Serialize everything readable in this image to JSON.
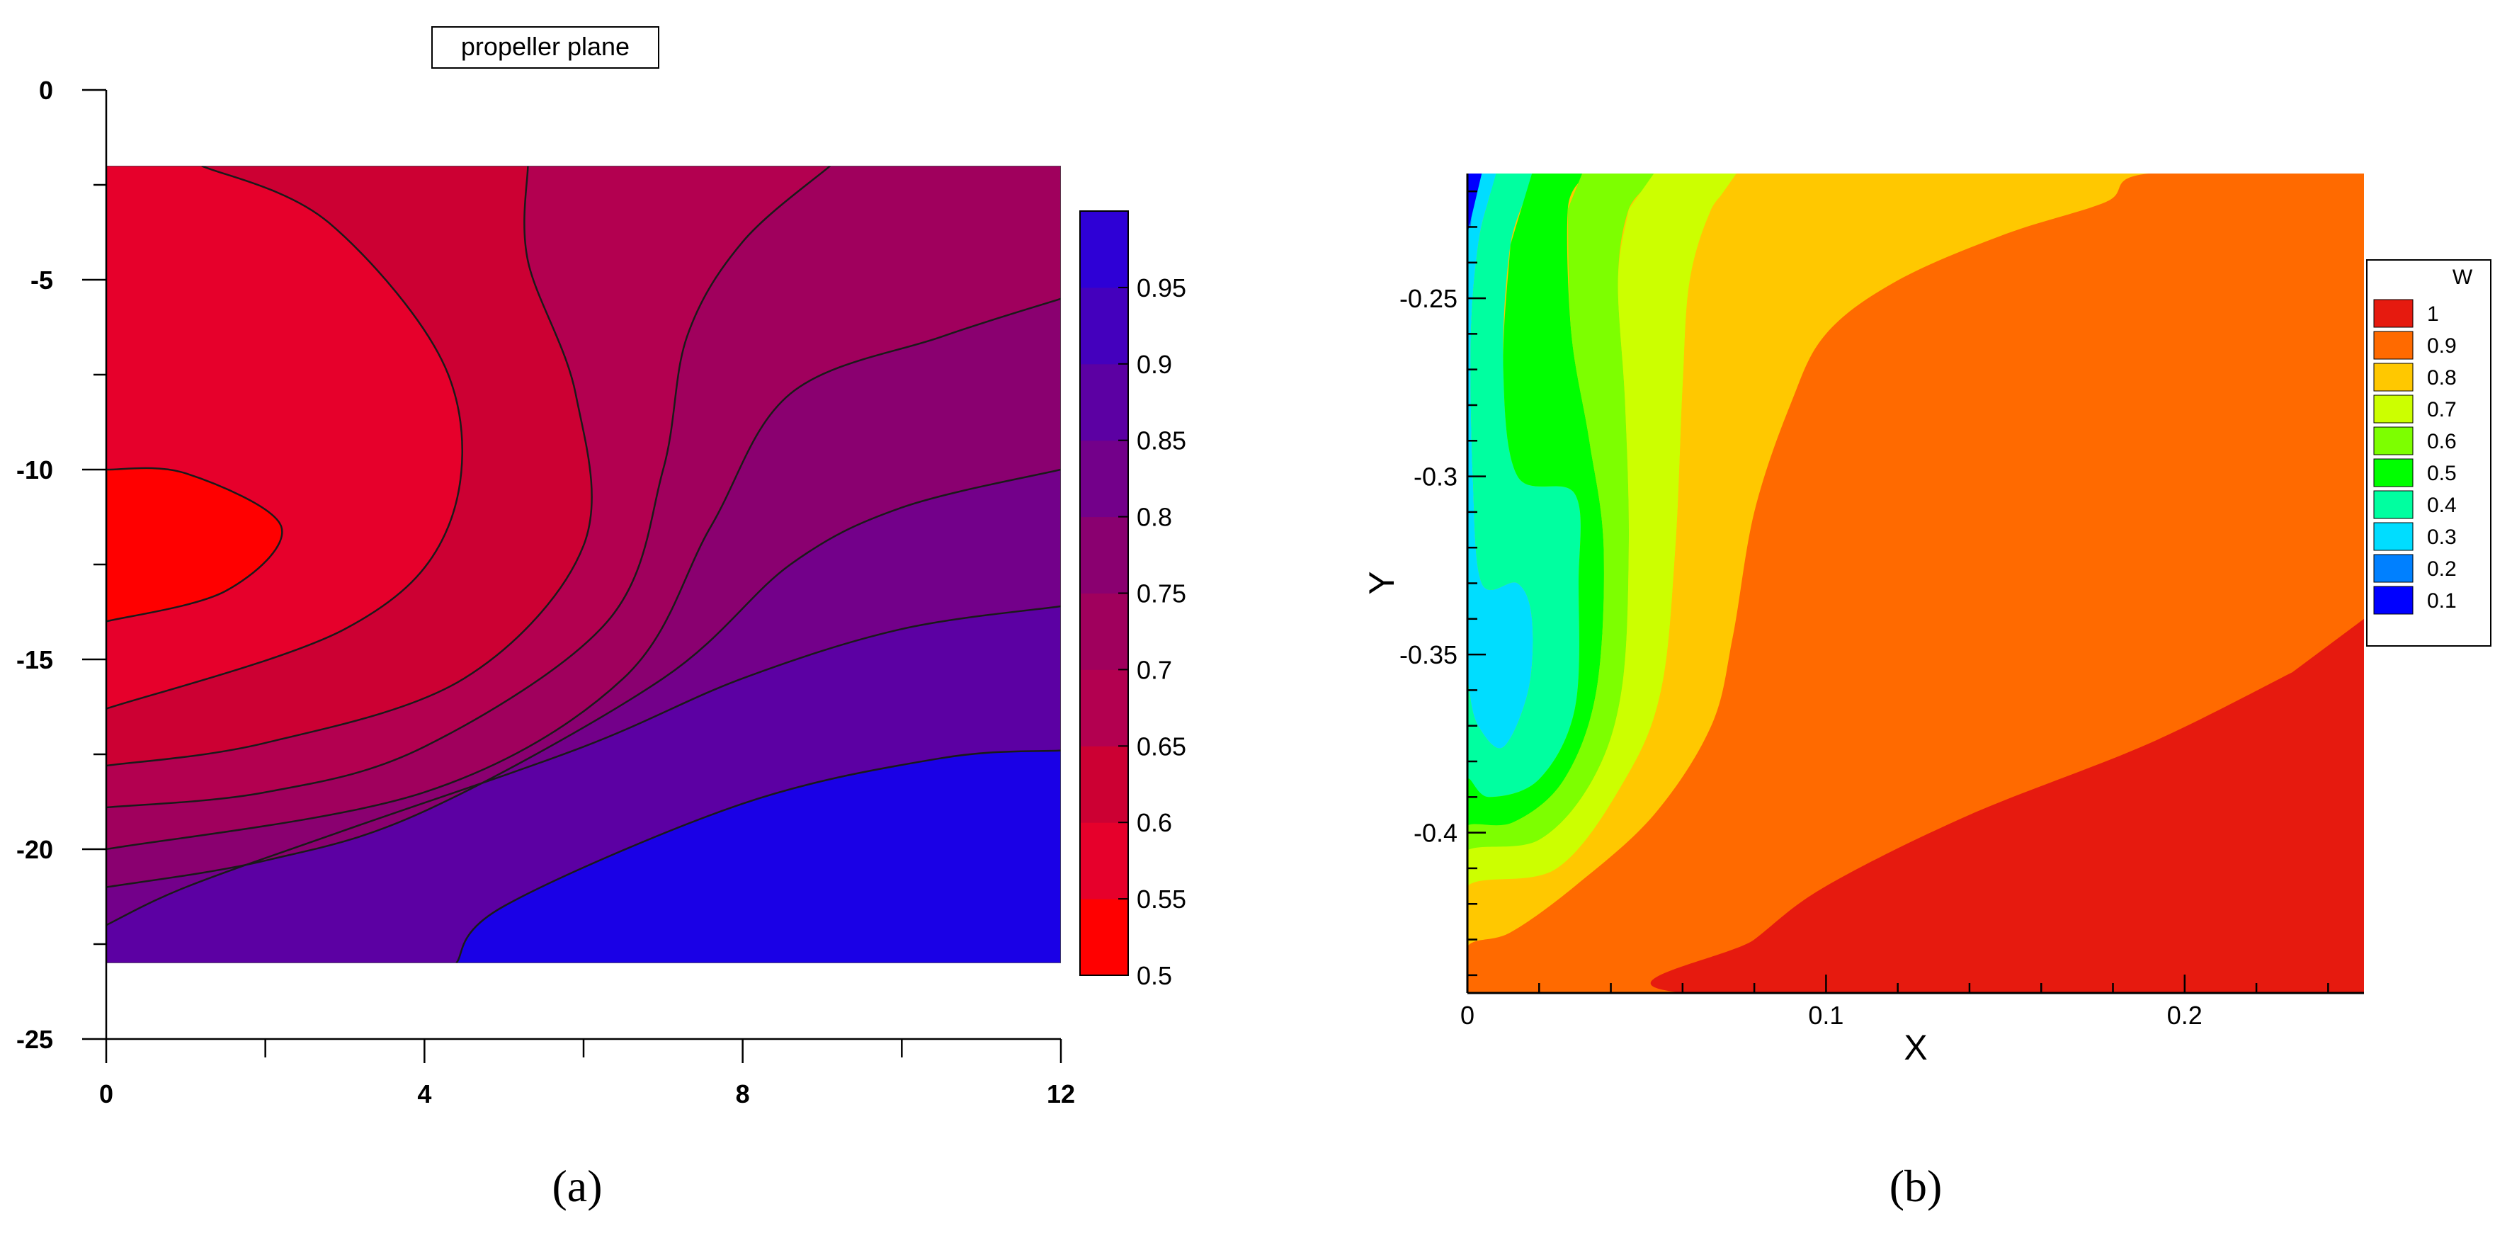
{
  "captions": {
    "a": "(a)",
    "b": "(b)"
  },
  "chart_data": [
    {
      "type": "heatmap",
      "panel": "a",
      "title": "propeller plane",
      "xlabel": "",
      "ylabel": "",
      "xlim": [
        0,
        12
      ],
      "ylim": [
        -25,
        0
      ],
      "data_x_range": [
        0,
        12
      ],
      "data_y_range": [
        -23,
        -2
      ],
      "xticks": [
        0,
        4,
        8,
        12
      ],
      "xticklabels": [
        "0",
        "4",
        "8",
        "12"
      ],
      "yticks": [
        0,
        -5,
        -10,
        -15,
        -20,
        -25
      ],
      "yticklabels": [
        "0",
        "-5",
        "-10",
        "-15",
        "-20",
        "-25"
      ],
      "grid": false,
      "colorbar": {
        "placement": "right",
        "range": [
          0.5,
          1.0
        ],
        "ticks": [
          0.95,
          0.9,
          0.85,
          0.8,
          0.75,
          0.7,
          0.65,
          0.6,
          0.55,
          0.5
        ],
        "ticklabels": [
          "0.95",
          "0.9",
          "0.85",
          "0.8",
          "0.75",
          "0.7",
          "0.65",
          "0.6",
          "0.55",
          "0.5"
        ],
        "levels": [
          0.5,
          0.55,
          0.6,
          0.65,
          0.7,
          0.75,
          0.8,
          0.85,
          0.9,
          0.95,
          1.0
        ],
        "colors": [
          "#ff0000",
          "#e6002b",
          "#cc0033",
          "#b30050",
          "#a0005d",
          "#8a0070",
          "#73008a",
          "#5c00a3",
          "#4400bd",
          "#2e00d6",
          "#0000ff"
        ]
      },
      "contours": [
        {
          "level": 0.55,
          "points": [
            [
              0,
              -10
            ],
            [
              1,
              -10.1
            ],
            [
              2.2,
              -11.5
            ],
            [
              1.5,
              -13.2
            ],
            [
              0,
              -14
            ]
          ]
        },
        {
          "level": 0.6,
          "points": [
            [
              1.2,
              -2
            ],
            [
              2.8,
              -3.5
            ],
            [
              4.3,
              -7.5
            ],
            [
              4.3,
              -11.5
            ],
            [
              3,
              -14.2
            ],
            [
              0,
              -16.3
            ]
          ]
        },
        {
          "level": 0.65,
          "points": [
            [
              5.3,
              -2
            ],
            [
              5.3,
              -4.5
            ],
            [
              5.9,
              -8
            ],
            [
              6,
              -12
            ],
            [
              4.5,
              -15.5
            ],
            [
              2,
              -17.2
            ],
            [
              0,
              -17.8
            ]
          ]
        },
        {
          "level": 0.7,
          "points": [
            [
              9.1,
              -2
            ],
            [
              8,
              -4
            ],
            [
              7.3,
              -6.5
            ],
            [
              7,
              -10
            ],
            [
              6.3,
              -14
            ],
            [
              4,
              -17.3
            ],
            [
              2,
              -18.5
            ],
            [
              0,
              -18.9
            ]
          ]
        },
        {
          "level": 0.75,
          "points": [
            [
              12,
              -5.5
            ],
            [
              10.5,
              -6.5
            ],
            [
              8.6,
              -8
            ],
            [
              7.6,
              -11.5
            ],
            [
              6.5,
              -15.5
            ],
            [
              4,
              -18.5
            ],
            [
              0,
              -20
            ]
          ]
        },
        {
          "level": 0.8,
          "points": [
            [
              12,
              -10
            ],
            [
              10,
              -11
            ],
            [
              8.6,
              -12.5
            ],
            [
              7,
              -15.5
            ],
            [
              4,
              -19
            ],
            [
              2,
              -20.3
            ],
            [
              0,
              -21
            ]
          ]
        },
        {
          "level": 0.85,
          "points": [
            [
              12,
              -13.6
            ],
            [
              10,
              -14.2
            ],
            [
              8,
              -15.5
            ],
            [
              6,
              -17.3
            ],
            [
              3,
              -19.5
            ],
            [
              1,
              -21
            ],
            [
              0,
              -22
            ]
          ]
        },
        {
          "level": 0.9,
          "points": [
            [
              12,
              -17.4
            ],
            [
              10.5,
              -17.6
            ],
            [
              8,
              -18.8
            ],
            [
              5,
              -21.5
            ],
            [
              4.4,
              -23
            ]
          ]
        }
      ]
    },
    {
      "type": "heatmap",
      "panel": "b",
      "title": "",
      "xlabel": "X",
      "ylabel": "Y",
      "xlim": [
        0,
        0.25
      ],
      "ylim": [
        -0.445,
        -0.215
      ],
      "xticks": [
        0,
        0.1,
        0.2
      ],
      "xticklabels": [
        "0",
        "0.1",
        "0.2"
      ],
      "yticks": [
        -0.25,
        -0.3,
        -0.35,
        -0.4
      ],
      "yticklabels": [
        "-0.25",
        "-0.3",
        "-0.35",
        "-0.4"
      ],
      "grid": false,
      "legend": {
        "placement": "right",
        "title": "W",
        "entries": [
          {
            "label": "1",
            "color": "#e61a0f"
          },
          {
            "label": "0.9",
            "color": "#ff6a00"
          },
          {
            "label": "0.8",
            "color": "#ffc800"
          },
          {
            "label": "0.7",
            "color": "#ccff00"
          },
          {
            "label": "0.6",
            "color": "#7dff00"
          },
          {
            "label": "0.5",
            "color": "#00ff00"
          },
          {
            "label": "0.4",
            "color": "#00ffa0"
          },
          {
            "label": "0.3",
            "color": "#00ddff"
          },
          {
            "label": "0.2",
            "color": "#0080ff"
          },
          {
            "label": "0.1",
            "color": "#0000ff"
          }
        ]
      },
      "background_level": 0.8,
      "regions": [
        {
          "level": 0.2,
          "points": [
            [
              0,
              -0.215
            ],
            [
              0.0015,
              -0.215
            ],
            [
              0.001,
              -0.23
            ],
            [
              0,
              -0.24
            ]
          ]
        },
        {
          "level": 0.3,
          "points": [
            [
              0.0015,
              -0.215
            ],
            [
              0.008,
              -0.215
            ],
            [
              0.006,
              -0.222
            ],
            [
              0.003,
              -0.235
            ],
            [
              0.001,
              -0.26
            ],
            [
              0.0015,
              -0.3
            ],
            [
              0.004,
              -0.33
            ],
            [
              0.014,
              -0.33
            ],
            [
              0.018,
              -0.34
            ],
            [
              0.017,
              -0.36
            ],
            [
              0.01,
              -0.376
            ],
            [
              0.003,
              -0.37
            ],
            [
              0.0005,
              -0.36
            ],
            [
              0,
              -0.35
            ],
            [
              0,
              -0.24
            ],
            [
              0.001,
              -0.23
            ]
          ]
        },
        {
          "level": 0.4,
          "points": [
            [
              0.008,
              -0.215
            ],
            [
              0.018,
              -0.215
            ],
            [
              0.012,
              -0.235
            ],
            [
              0.01,
              -0.27
            ],
            [
              0.014,
              -0.3
            ],
            [
              0.03,
              -0.305
            ],
            [
              0.031,
              -0.33
            ],
            [
              0.03,
              -0.365
            ],
            [
              0.02,
              -0.385
            ],
            [
              0.006,
              -0.39
            ],
            [
              0,
              -0.385
            ],
            [
              0,
              -0.35
            ],
            [
              0.0005,
              -0.36
            ],
            [
              0.003,
              -0.37
            ],
            [
              0.01,
              -0.376
            ],
            [
              0.017,
              -0.36
            ],
            [
              0.018,
              -0.34
            ],
            [
              0.014,
              -0.33
            ],
            [
              0.004,
              -0.33
            ],
            [
              0.0015,
              -0.3
            ],
            [
              0.001,
              -0.26
            ],
            [
              0.003,
              -0.235
            ],
            [
              0.006,
              -0.222
            ]
          ]
        },
        {
          "level": 0.5,
          "points": [
            [
              0.018,
              -0.215
            ],
            [
              0.032,
              -0.215
            ],
            [
              0.028,
              -0.225
            ],
            [
              0.029,
              -0.26
            ],
            [
              0.034,
              -0.29
            ],
            [
              0.038,
              -0.32
            ],
            [
              0.036,
              -0.36
            ],
            [
              0.027,
              -0.385
            ],
            [
              0.013,
              -0.397
            ],
            [
              0,
              -0.398
            ],
            [
              0,
              -0.385
            ],
            [
              0.006,
              -0.39
            ],
            [
              0.02,
              -0.385
            ],
            [
              0.03,
              -0.365
            ],
            [
              0.031,
              -0.33
            ],
            [
              0.03,
              -0.305
            ],
            [
              0.014,
              -0.3
            ],
            [
              0.01,
              -0.27
            ],
            [
              0.012,
              -0.235
            ]
          ]
        },
        {
          "level": 0.6,
          "points": [
            [
              0.032,
              -0.215
            ],
            [
              0.052,
              -0.215
            ],
            [
              0.045,
              -0.225
            ],
            [
              0.042,
              -0.245
            ],
            [
              0.044,
              -0.28
            ],
            [
              0.045,
              -0.32
            ],
            [
              0.043,
              -0.36
            ],
            [
              0.035,
              -0.385
            ],
            [
              0.02,
              -0.402
            ],
            [
              0,
              -0.405
            ],
            [
              0,
              -0.398
            ],
            [
              0.013,
              -0.397
            ],
            [
              0.027,
              -0.385
            ],
            [
              0.036,
              -0.36
            ],
            [
              0.038,
              -0.32
            ],
            [
              0.034,
              -0.29
            ],
            [
              0.029,
              -0.26
            ],
            [
              0.028,
              -0.225
            ]
          ]
        },
        {
          "level": 0.7,
          "points": [
            [
              0.052,
              -0.215
            ],
            [
              0.075,
              -0.215
            ],
            [
              0.068,
              -0.225
            ],
            [
              0.062,
              -0.245
            ],
            [
              0.06,
              -0.275
            ],
            [
              0.058,
              -0.32
            ],
            [
              0.054,
              -0.36
            ],
            [
              0.044,
              -0.385
            ],
            [
              0.025,
              -0.41
            ],
            [
              0,
              -0.415
            ],
            [
              0,
              -0.405
            ],
            [
              0.02,
              -0.402
            ],
            [
              0.035,
              -0.385
            ],
            [
              0.043,
              -0.36
            ],
            [
              0.045,
              -0.32
            ],
            [
              0.044,
              -0.28
            ],
            [
              0.042,
              -0.245
            ],
            [
              0.045,
              -0.225
            ]
          ]
        },
        {
          "level": 0.8,
          "points": [
            [
              0.075,
              -0.215
            ],
            [
              0.19,
              -0.215
            ],
            [
              0.178,
              -0.223
            ],
            [
              0.15,
              -0.232
            ],
            [
              0.12,
              -0.245
            ],
            [
              0.1,
              -0.26
            ],
            [
              0.09,
              -0.28
            ],
            [
              0.08,
              -0.31
            ],
            [
              0.074,
              -0.345
            ],
            [
              0.068,
              -0.37
            ],
            [
              0.052,
              -0.395
            ],
            [
              0.03,
              -0.415
            ],
            [
              0.012,
              -0.428
            ],
            [
              0,
              -0.432
            ],
            [
              0,
              -0.415
            ],
            [
              0.025,
              -0.41
            ],
            [
              0.044,
              -0.385
            ],
            [
              0.054,
              -0.36
            ],
            [
              0.058,
              -0.32
            ],
            [
              0.06,
              -0.275
            ],
            [
              0.062,
              -0.245
            ],
            [
              0.068,
              -0.225
            ]
          ]
        },
        {
          "level": 0.9,
          "points": [
            [
              0.25,
              -0.226
            ],
            [
              0.25,
              -0.445
            ],
            [
              0,
              -0.445
            ],
            [
              0,
              -0.432
            ],
            [
              0.012,
              -0.428
            ],
            [
              0.03,
              -0.415
            ],
            [
              0.052,
              -0.395
            ],
            [
              0.068,
              -0.37
            ],
            [
              0.074,
              -0.345
            ],
            [
              0.08,
              -0.31
            ],
            [
              0.09,
              -0.28
            ],
            [
              0.1,
              -0.26
            ],
            [
              0.12,
              -0.245
            ],
            [
              0.15,
              -0.232
            ],
            [
              0.178,
              -0.223
            ],
            [
              0.19,
              -0.215
            ],
            [
              0.25,
              -0.215
            ]
          ]
        },
        {
          "level": 1.0,
          "points": [
            [
              0.25,
              -0.34
            ],
            [
              0.25,
              -0.445
            ],
            [
              0.061,
              -0.445
            ],
            [
              0.08,
              -0.43
            ],
            [
              0.1,
              -0.415
            ],
            [
              0.14,
              -0.395
            ],
            [
              0.19,
              -0.375
            ],
            [
              0.23,
              -0.355
            ]
          ]
        }
      ]
    }
  ]
}
